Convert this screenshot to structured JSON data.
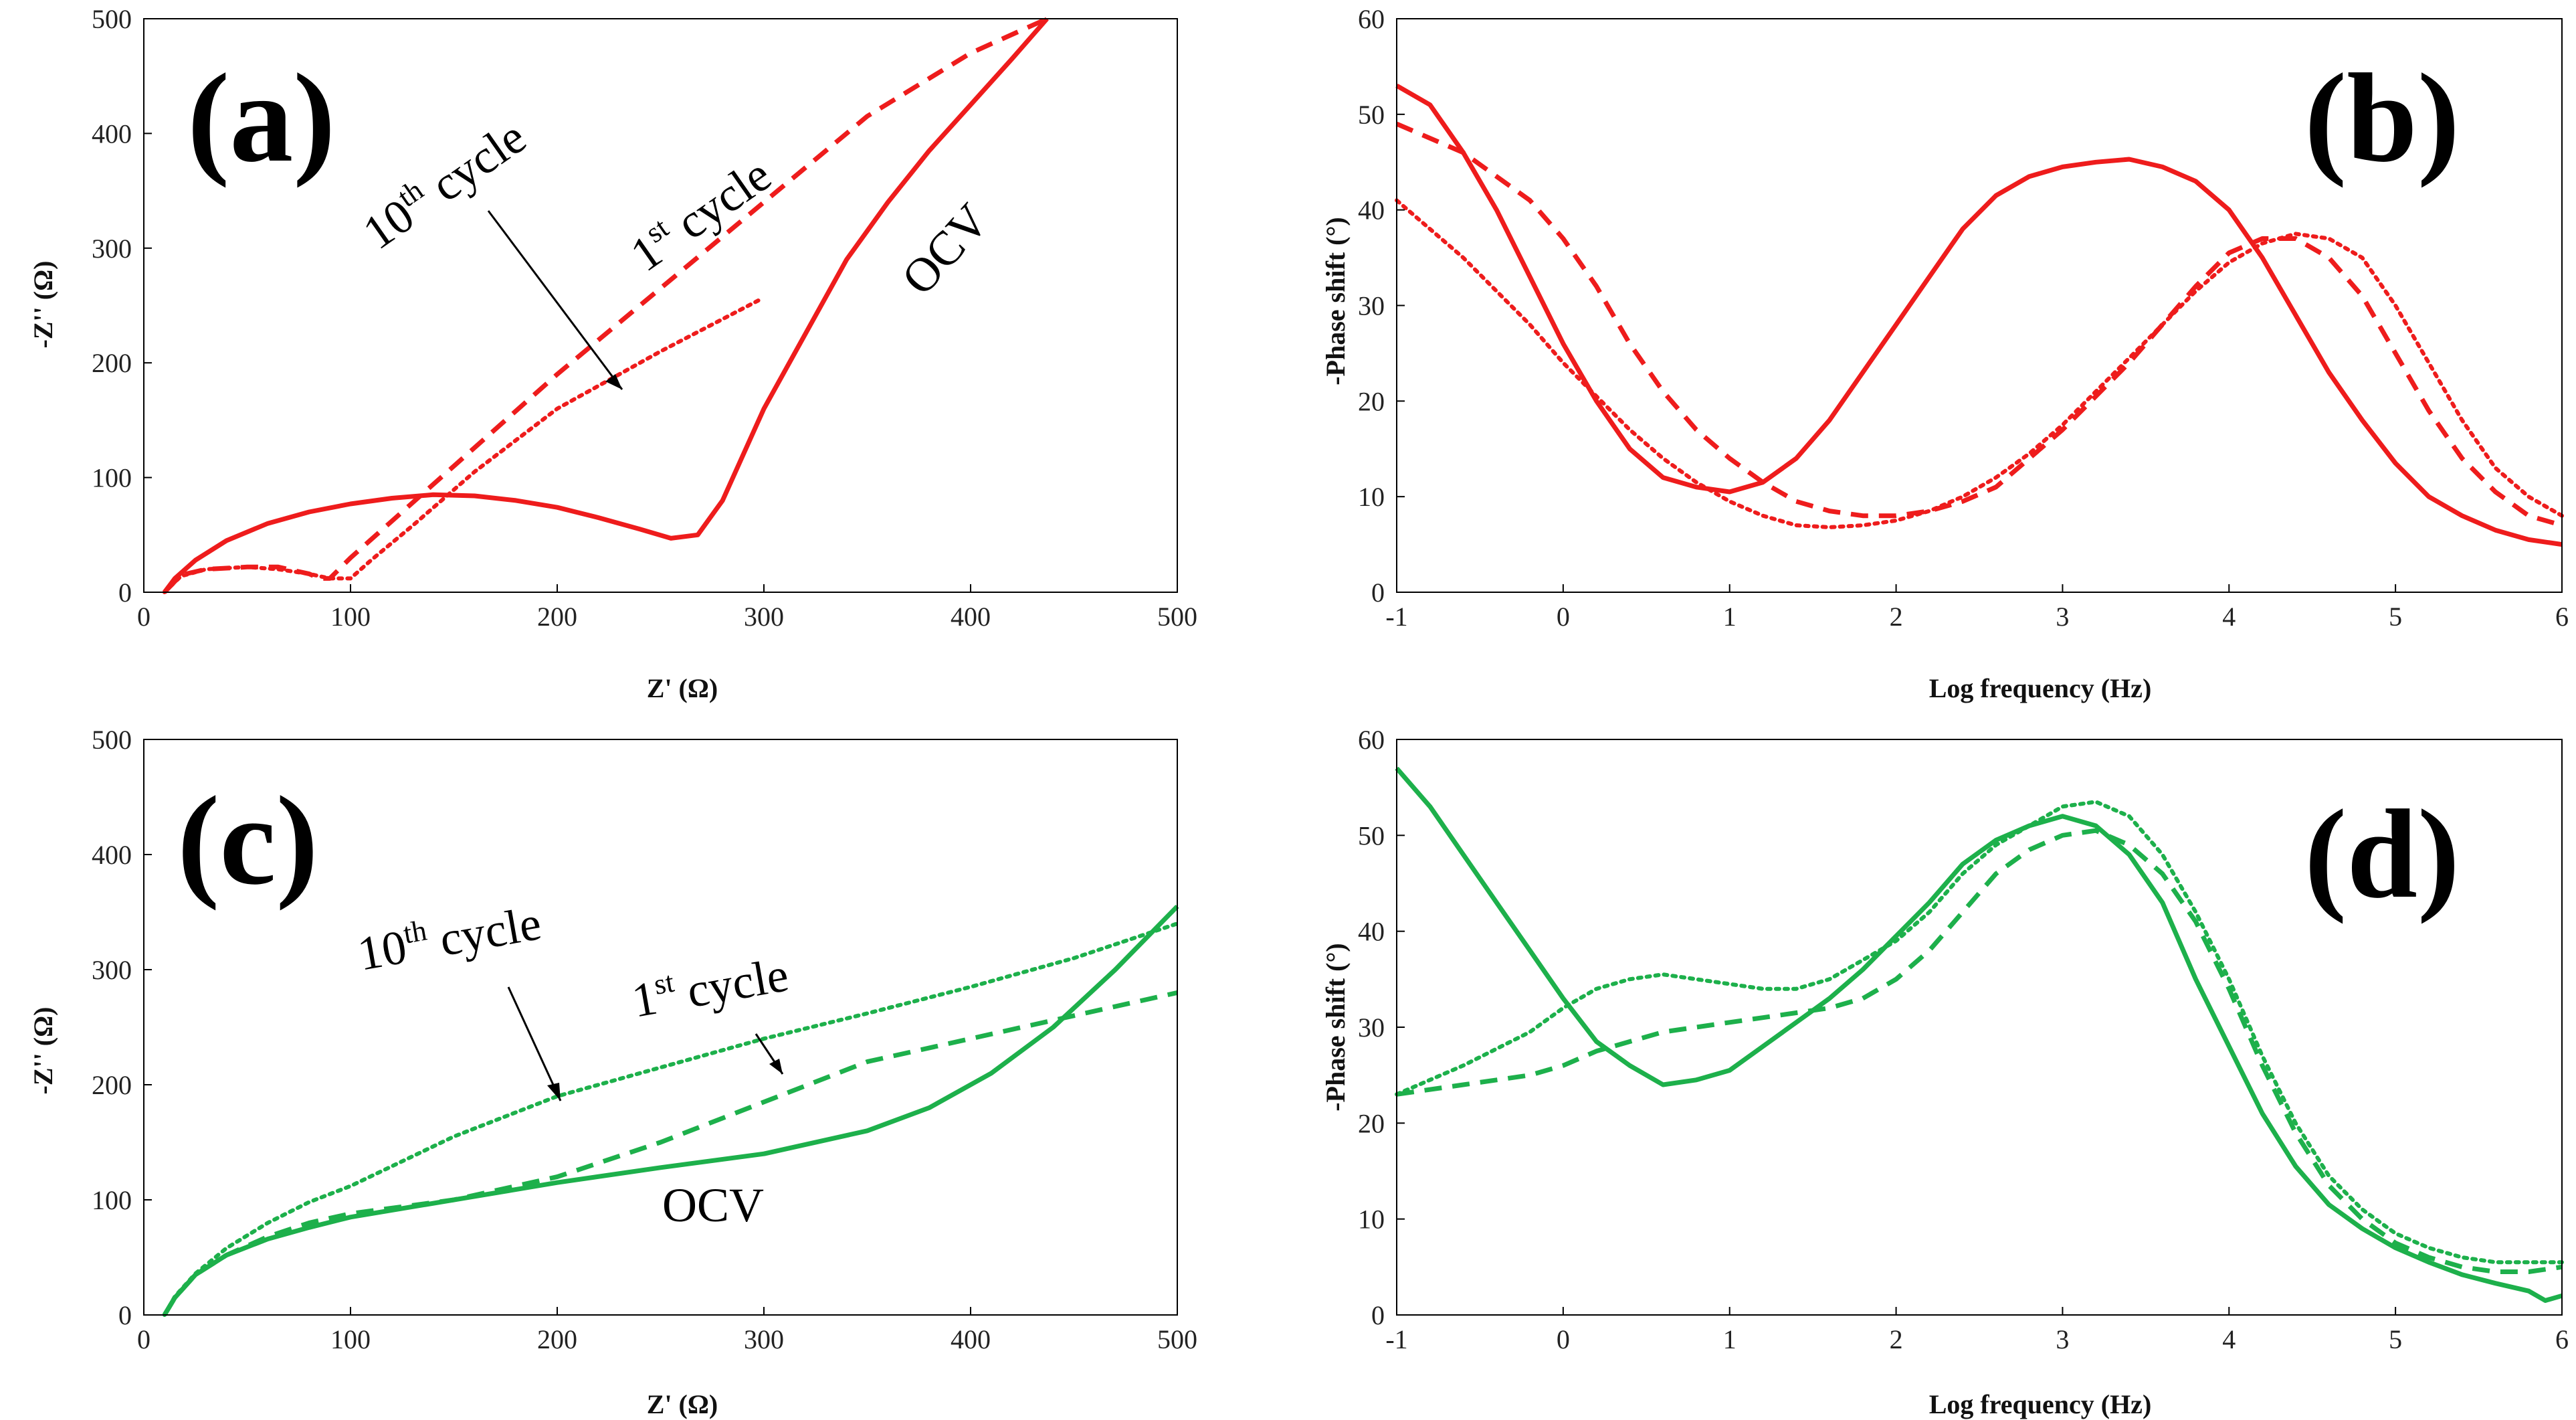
{
  "figure": {
    "colors": {
      "red": "#ee1c1c",
      "green": "#1db04b",
      "axis": "#000000"
    }
  },
  "chart_data": [
    {
      "id": "a",
      "type": "line",
      "panel_label": "(a)",
      "xlabel": "Z' (Ω)",
      "ylabel": "-Z'' (Ω)",
      "xlim": [
        0,
        500
      ],
      "ylim": [
        0,
        500
      ],
      "xticks": [
        "0",
        "100",
        "200",
        "300",
        "400",
        "500"
      ],
      "yticks": [
        "0",
        "100",
        "200",
        "300",
        "400",
        "500"
      ],
      "color": "red",
      "series": [
        {
          "name": "OCV",
          "style": "solid",
          "x": [
            10,
            15,
            25,
            40,
            60,
            80,
            100,
            120,
            140,
            160,
            180,
            200,
            220,
            240,
            255,
            268,
            280,
            290,
            300,
            320,
            340,
            360,
            380,
            400,
            420,
            437
          ],
          "y": [
            0,
            12,
            28,
            45,
            60,
            70,
            77,
            82,
            85,
            84,
            80,
            74,
            65,
            55,
            47,
            50,
            80,
            120,
            160,
            225,
            290,
            340,
            385,
            425,
            465,
            500
          ]
        },
        {
          "name": "1st cycle",
          "style": "dashed",
          "x": [
            10,
            18,
            30,
            50,
            65,
            80,
            85,
            90,
            100,
            120,
            150,
            200,
            250,
            300,
            350,
            400,
            437
          ],
          "y": [
            0,
            15,
            20,
            22,
            22,
            16,
            12,
            12,
            30,
            62,
            110,
            190,
            265,
            340,
            415,
            470,
            500
          ]
        },
        {
          "name": "10th cycle",
          "style": "dotted",
          "x": [
            10,
            18,
            30,
            50,
            65,
            80,
            90,
            100,
            110,
            130,
            160,
            200,
            250,
            298
          ],
          "y": [
            0,
            14,
            20,
            22,
            20,
            16,
            12,
            12,
            28,
            58,
            105,
            160,
            210,
            255
          ]
        }
      ],
      "annotations": [
        {
          "base": "10",
          "sup": "th",
          "rest": " cycle"
        },
        {
          "base": "1",
          "sup": "st",
          "rest": " cycle"
        },
        {
          "base": "OCV",
          "sup": "",
          "rest": ""
        }
      ]
    },
    {
      "id": "b",
      "type": "line",
      "panel_label": "(b)",
      "xlabel": "Log frequency (Hz)",
      "ylabel": "-Phase shift (°)",
      "xlim": [
        -1,
        6
      ],
      "ylim": [
        0,
        60
      ],
      "xticks": [
        "-1",
        "0",
        "1",
        "2",
        "3",
        "4",
        "5",
        "6"
      ],
      "yticks": [
        "0",
        "10",
        "20",
        "30",
        "40",
        "50",
        "60"
      ],
      "color": "red",
      "series": [
        {
          "name": "OCV",
          "style": "solid",
          "x": [
            -1,
            -0.8,
            -0.6,
            -0.4,
            -0.2,
            0,
            0.2,
            0.4,
            0.6,
            0.8,
            1,
            1.2,
            1.4,
            1.6,
            1.8,
            2,
            2.2,
            2.4,
            2.6,
            2.8,
            3,
            3.2,
            3.4,
            3.6,
            3.8,
            4,
            4.2,
            4.4,
            4.6,
            4.8,
            5,
            5.2,
            5.4,
            5.6,
            5.8,
            6
          ],
          "y": [
            53,
            51,
            46,
            40,
            33,
            26,
            20,
            15,
            12,
            11,
            10.5,
            11.5,
            14,
            18,
            23,
            28,
            33,
            38,
            41.5,
            43.5,
            44.5,
            45,
            45.3,
            44.5,
            43,
            40,
            35,
            29,
            23,
            18,
            13.5,
            10,
            8,
            6.5,
            5.5,
            5
          ]
        },
        {
          "name": "1st cycle",
          "style": "dashed",
          "x": [
            -1,
            -0.6,
            -0.2,
            0,
            0.2,
            0.4,
            0.6,
            0.8,
            1,
            1.2,
            1.4,
            1.6,
            1.8,
            2,
            2.2,
            2.4,
            2.6,
            2.8,
            3,
            3.2,
            3.4,
            3.6,
            3.8,
            4,
            4.2,
            4.4,
            4.6,
            4.8,
            5,
            5.2,
            5.4,
            5.6,
            5.8,
            6
          ],
          "y": [
            49,
            46,
            41,
            37,
            32,
            26,
            21,
            17,
            14,
            11.5,
            9.5,
            8.5,
            8,
            8,
            8.5,
            9.5,
            11,
            14,
            17,
            20.5,
            24,
            28,
            32,
            35.5,
            37,
            37,
            35,
            31,
            25,
            19,
            14,
            10.5,
            8,
            7
          ]
        },
        {
          "name": "10th cycle",
          "style": "dotted",
          "x": [
            -1,
            -0.6,
            -0.2,
            0,
            0.2,
            0.4,
            0.6,
            0.8,
            1,
            1.2,
            1.4,
            1.6,
            1.8,
            2,
            2.2,
            2.4,
            2.6,
            2.8,
            3,
            3.2,
            3.4,
            3.6,
            3.8,
            4,
            4.2,
            4.4,
            4.6,
            4.8,
            5,
            5.2,
            5.4,
            5.6,
            5.8,
            6
          ],
          "y": [
            41,
            35,
            28,
            24,
            20.5,
            17,
            14,
            11.5,
            9.5,
            8,
            7,
            6.8,
            7,
            7.5,
            8.5,
            10,
            12,
            14.5,
            17.5,
            21,
            24.5,
            28,
            31.5,
            34.5,
            36.5,
            37.5,
            37,
            35,
            30,
            24,
            18,
            13,
            10,
            8
          ]
        }
      ],
      "annotations": []
    },
    {
      "id": "c",
      "type": "line",
      "panel_label": "(c)",
      "xlabel": "Z' (Ω)",
      "ylabel": "-Z'' (Ω)",
      "xlim": [
        0,
        500
      ],
      "ylim": [
        0,
        500
      ],
      "xticks": [
        "0",
        "100",
        "200",
        "300",
        "400",
        "500"
      ],
      "yticks": [
        "0",
        "100",
        "200",
        "300",
        "400",
        "500"
      ],
      "color": "green",
      "series": [
        {
          "name": "OCV",
          "style": "solid",
          "x": [
            10,
            15,
            25,
            40,
            60,
            80,
            100,
            150,
            200,
            250,
            300,
            350,
            380,
            410,
            440,
            470,
            500
          ],
          "y": [
            0,
            15,
            35,
            52,
            66,
            76,
            85,
            100,
            115,
            128,
            140,
            160,
            180,
            210,
            250,
            300,
            355
          ]
        },
        {
          "name": "1st cycle",
          "style": "dashed",
          "x": [
            10,
            15,
            25,
            40,
            60,
            80,
            100,
            150,
            200,
            250,
            300,
            350,
            400,
            450,
            500
          ],
          "y": [
            0,
            15,
            35,
            52,
            68,
            80,
            88,
            100,
            120,
            150,
            185,
            220,
            240,
            260,
            280
          ]
        },
        {
          "name": "10th cycle",
          "style": "dotted",
          "x": [
            10,
            15,
            25,
            40,
            60,
            80,
            100,
            150,
            200,
            250,
            300,
            350,
            400,
            450,
            500
          ],
          "y": [
            0,
            16,
            36,
            58,
            80,
            98,
            112,
            155,
            190,
            215,
            240,
            262,
            285,
            310,
            340
          ]
        }
      ],
      "annotations": [
        {
          "base": "10",
          "sup": "th",
          "rest": " cycle"
        },
        {
          "base": "1",
          "sup": "st",
          "rest": " cycle"
        },
        {
          "base": "OCV",
          "sup": "",
          "rest": ""
        }
      ]
    },
    {
      "id": "d",
      "type": "line",
      "panel_label": "(d)",
      "xlabel": "Log frequency (Hz)",
      "ylabel": "-Phase shift (°)",
      "xlim": [
        -1,
        6
      ],
      "ylim": [
        0,
        60
      ],
      "xticks": [
        "-1",
        "0",
        "1",
        "2",
        "3",
        "4",
        "5",
        "6"
      ],
      "yticks": [
        "0",
        "10",
        "20",
        "30",
        "40",
        "50",
        "60"
      ],
      "color": "green",
      "series": [
        {
          "name": "OCV",
          "style": "solid",
          "x": [
            -1,
            -0.8,
            -0.6,
            -0.4,
            -0.2,
            0,
            0.2,
            0.4,
            0.6,
            0.8,
            1,
            1.2,
            1.4,
            1.6,
            1.8,
            2,
            2.2,
            2.4,
            2.6,
            2.8,
            3,
            3.2,
            3.4,
            3.6,
            3.8,
            4,
            4.2,
            4.4,
            4.6,
            4.8,
            5,
            5.2,
            5.4,
            5.6,
            5.8,
            5.9,
            6
          ],
          "y": [
            57,
            53,
            48,
            43,
            38,
            33,
            28.5,
            26,
            24,
            24.5,
            25.5,
            28,
            30.5,
            33,
            36,
            39.5,
            43,
            47,
            49.5,
            51,
            52,
            51,
            48,
            43,
            35,
            28,
            21,
            15.5,
            11.5,
            9,
            7,
            5.5,
            4.2,
            3.3,
            2.5,
            1.5,
            2
          ]
        },
        {
          "name": "1st cycle",
          "style": "dashed",
          "x": [
            -1,
            -0.6,
            -0.2,
            0,
            0.2,
            0.4,
            0.6,
            0.8,
            1,
            1.2,
            1.4,
            1.6,
            1.8,
            2,
            2.2,
            2.4,
            2.6,
            2.8,
            3,
            3.2,
            3.4,
            3.6,
            3.8,
            4,
            4.2,
            4.4,
            4.6,
            4.8,
            5,
            5.2,
            5.4,
            5.6,
            5.8,
            6
          ],
          "y": [
            23,
            24,
            25,
            26,
            27.5,
            28.5,
            29.5,
            30,
            30.5,
            31,
            31.5,
            32,
            33,
            35,
            38,
            42,
            46,
            48.5,
            50,
            50.5,
            49,
            46,
            41,
            34,
            26,
            19,
            13.5,
            10,
            7.5,
            6,
            5,
            4.5,
            4.5,
            5
          ]
        },
        {
          "name": "10th cycle",
          "style": "dotted",
          "x": [
            -1,
            -0.6,
            -0.2,
            0,
            0.2,
            0.4,
            0.6,
            0.8,
            1,
            1.2,
            1.4,
            1.6,
            1.8,
            2,
            2.2,
            2.4,
            2.6,
            2.8,
            3,
            3.2,
            3.4,
            3.6,
            3.8,
            4,
            4.2,
            4.4,
            4.6,
            4.8,
            5,
            5.2,
            5.4,
            5.6,
            5.8,
            6
          ],
          "y": [
            23,
            26,
            29.5,
            32,
            34,
            35,
            35.5,
            35,
            34.5,
            34,
            34,
            35,
            37,
            39,
            42,
            46,
            49,
            51,
            53,
            53.5,
            52,
            48,
            42,
            35,
            27,
            20,
            14.5,
            11,
            8.5,
            7,
            6,
            5.5,
            5.5,
            5.5
          ]
        }
      ],
      "annotations": []
    }
  ]
}
